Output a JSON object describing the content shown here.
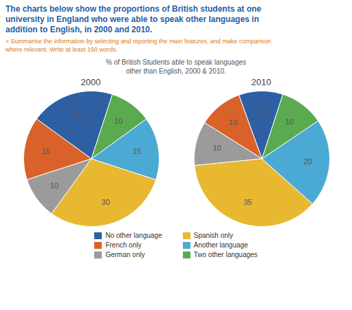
{
  "title": "The charts below show the proportions of British students at one\nuniversity in England who were able to speak other languages in\naddition to English, in 2000 and 2010.",
  "subtitle": "» Summarise the information by selecting and reporting the main features, and make comparison\nwhere relevant. Write at least 150 words.",
  "annotations": [
    "% of British Students able to speak languages\nother than English, 2000 & 2010."
  ],
  "legend": "bottom",
  "chart_data": [
    {
      "type": "pie",
      "title": "2000",
      "categories": [
        "No other language",
        "French only",
        "German only",
        "Spanish only",
        "Another language",
        "Two other languages"
      ],
      "values": [
        20,
        15,
        10,
        30,
        15,
        10
      ],
      "colors": [
        "#2e5fa3",
        "#d9622b",
        "#9b9b9b",
        "#e8b830",
        "#4baad3",
        "#5aaa4f"
      ],
      "data_labels": true
    },
    {
      "type": "pie",
      "title": "2010",
      "categories": [
        "No other language",
        "French only",
        "German only",
        "Spanish only",
        "Another language",
        "Two other languages"
      ],
      "values": [
        10,
        10,
        10,
        35,
        20,
        10
      ],
      "colors": [
        "#2e5fa3",
        "#d9622b",
        "#9b9b9b",
        "#e8b830",
        "#4baad3",
        "#5aaa4f"
      ],
      "data_labels": true
    }
  ]
}
